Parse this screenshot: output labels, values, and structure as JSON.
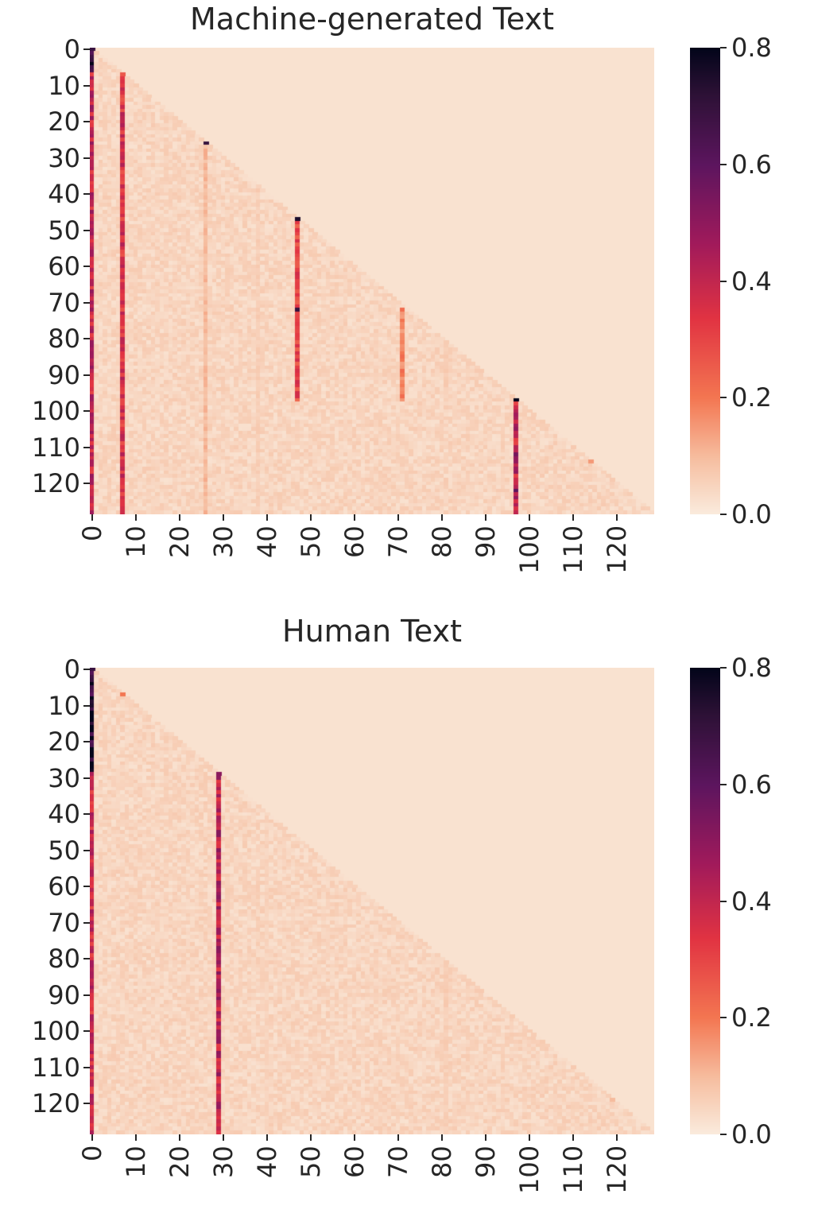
{
  "chart_data": [
    {
      "type": "heatmap",
      "title": "Machine-generated Text",
      "xlabel": "",
      "ylabel": "",
      "x_tick_labels": [
        "0",
        "10",
        "20",
        "30",
        "40",
        "50",
        "60",
        "70",
        "80",
        "90",
        "100",
        "110",
        "120"
      ],
      "y_tick_labels": [
        "0",
        "10",
        "20",
        "30",
        "40",
        "50",
        "60",
        "70",
        "80",
        "90",
        "100",
        "110",
        "120"
      ],
      "colorbar": {
        "range": [
          0.0,
          0.8
        ],
        "tick_labels": [
          "0.0",
          "0.2",
          "0.4",
          "0.6",
          "0.8"
        ],
        "colormap": "rocket_r"
      },
      "matrix_size": 129,
      "causal_lower_triangular": true,
      "background_value": 0.02,
      "column_stripes": [
        {
          "col": 0,
          "from_row": 0,
          "to_row": 6,
          "value": 0.8
        },
        {
          "col": 0,
          "from_row": 7,
          "to_row": 128,
          "value": 0.4
        },
        {
          "col": 7,
          "from_row": 7,
          "to_row": 128,
          "value": 0.35
        },
        {
          "col": 26,
          "from_row": 26,
          "to_row": 128,
          "value": 0.1
        },
        {
          "col": 47,
          "from_row": 48,
          "to_row": 97,
          "value": 0.3
        },
        {
          "col": 71,
          "from_row": 72,
          "to_row": 97,
          "value": 0.18
        },
        {
          "col": 97,
          "from_row": 98,
          "to_row": 128,
          "value": 0.4
        },
        {
          "col": 38,
          "from_row": 38,
          "to_row": 128,
          "value": 0.06
        },
        {
          "col": 81,
          "from_row": 81,
          "to_row": 97,
          "value": 0.06
        }
      ],
      "hot_cells": [
        {
          "row": 26,
          "col": 26,
          "value": 0.7
        },
        {
          "row": 47,
          "col": 47,
          "value": 0.75
        },
        {
          "row": 72,
          "col": 47,
          "value": 0.7
        },
        {
          "row": 97,
          "col": 97,
          "value": 0.8
        },
        {
          "row": 114,
          "col": 114,
          "value": 0.15
        },
        {
          "row": 122,
          "col": 97,
          "value": 0.6
        },
        {
          "row": 112,
          "col": 97,
          "value": 0.55
        }
      ]
    },
    {
      "type": "heatmap",
      "title": "Human Text",
      "xlabel": "",
      "ylabel": "",
      "x_tick_labels": [
        "0",
        "10",
        "20",
        "30",
        "40",
        "50",
        "60",
        "70",
        "80",
        "90",
        "100",
        "110",
        "120"
      ],
      "y_tick_labels": [
        "0",
        "10",
        "20",
        "30",
        "40",
        "50",
        "60",
        "70",
        "80",
        "90",
        "100",
        "110",
        "120"
      ],
      "colorbar": {
        "range": [
          0.0,
          0.8
        ],
        "tick_labels": [
          "0.0",
          "0.2",
          "0.4",
          "0.6",
          "0.8"
        ],
        "colormap": "rocket_r"
      },
      "matrix_size": 129,
      "causal_lower_triangular": true,
      "background_value": 0.02,
      "column_stripes": [
        {
          "col": 0,
          "from_row": 0,
          "to_row": 28,
          "value": 0.8
        },
        {
          "col": 0,
          "from_row": 29,
          "to_row": 128,
          "value": 0.38
        },
        {
          "col": 29,
          "from_row": 29,
          "to_row": 128,
          "value": 0.42
        },
        {
          "col": 40,
          "from_row": 40,
          "to_row": 128,
          "value": 0.05
        },
        {
          "col": 81,
          "from_row": 81,
          "to_row": 128,
          "value": 0.06
        }
      ],
      "hot_cells": [
        {
          "row": 7,
          "col": 7,
          "value": 0.2
        },
        {
          "row": 119,
          "col": 119,
          "value": 0.1
        }
      ]
    }
  ]
}
